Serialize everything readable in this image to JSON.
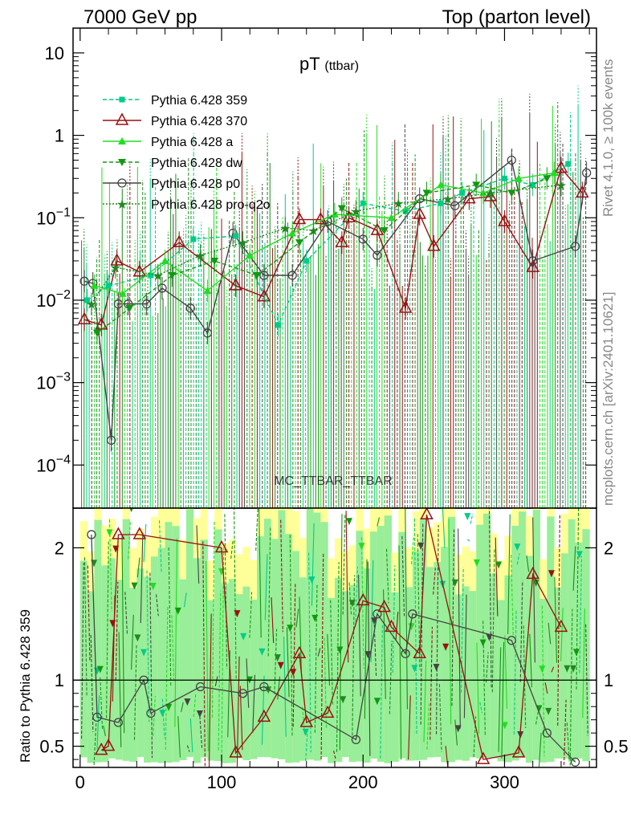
{
  "header": {
    "left": "7000 GeV pp",
    "right": "Top (parton level)"
  },
  "side_labels": {
    "rivet": "Rivet 4.1.0, ≥ 100k events",
    "mcplots": "mcplots.cern.ch [arXiv:2401.10621]"
  },
  "watermark": "MC_TTBAR_TTBAR",
  "colors": {
    "s359": "#00cc88",
    "s370": "#991111",
    "sa": "#22dd22",
    "sdw": "#119911",
    "sp0": "#444444",
    "spro": "#228822",
    "band_inner": "#99ee99",
    "band_outer": "#ffff99"
  },
  "chart_data": [
    {
      "type": "line",
      "panel": "main",
      "title": "pT",
      "title_sub": "(ttbar)",
      "yscale": "log",
      "xlim": [
        -5,
        365
      ],
      "ylim": [
        3e-05,
        20
      ],
      "yticks": [
        {
          "value": 0.0001,
          "label": "10",
          "exp": "−4"
        },
        {
          "value": 0.001,
          "label": "10",
          "exp": "−3"
        },
        {
          "value": 0.01,
          "label": "10",
          "exp": "−2"
        },
        {
          "value": 0.1,
          "label": "10",
          "exp": "−1"
        },
        {
          "value": 1,
          "label": "1",
          "exp": ""
        },
        {
          "value": 10,
          "label": "10",
          "exp": ""
        }
      ],
      "legend": [
        {
          "key": "s359",
          "name": "Pythia 6.428 359"
        },
        {
          "key": "s370",
          "name": "Pythia 6.428 370"
        },
        {
          "key": "sa",
          "name": "Pythia 6.428 a"
        },
        {
          "key": "sdw",
          "name": "Pythia 6.428 dw"
        },
        {
          "key": "sp0",
          "name": "Pythia 6.428 p0"
        },
        {
          "key": "spro",
          "name": "Pythia 6.428 pro-q2o"
        }
      ],
      "series": [
        {
          "key": "s370",
          "name": "Pythia 6.428 370",
          "points": [
            [
              3,
              0.0058
            ],
            [
              15,
              0.005
            ],
            [
              26,
              0.03
            ],
            [
              42,
              0.022
            ],
            [
              70,
              0.05
            ],
            [
              110,
              0.015
            ],
            [
              130,
              0.011
            ],
            [
              155,
              0.095
            ],
            [
              170,
              0.095
            ],
            [
              185,
              0.05
            ],
            [
              190,
              0.1
            ],
            [
              210,
              0.07
            ],
            [
              230,
              0.008
            ],
            [
              240,
              0.11
            ],
            [
              250,
              0.045
            ],
            [
              275,
              0.17
            ],
            [
              290,
              0.18
            ],
            [
              300,
              0.09
            ],
            [
              320,
              0.025
            ],
            [
              340,
              0.4
            ],
            [
              355,
              0.2
            ]
          ]
        },
        {
          "key": "sp0",
          "name": "Pythia 6.428 p0",
          "points": [
            [
              3,
              0.017
            ],
            [
              9,
              0.016
            ],
            [
              22,
              0.0002
            ],
            [
              27,
              0.009
            ],
            [
              34,
              0.009
            ],
            [
              47,
              0.009
            ],
            [
              58,
              0.014
            ],
            [
              78,
              0.008
            ],
            [
              90,
              0.004
            ],
            [
              108,
              0.065
            ],
            [
              130,
              0.02
            ],
            [
              150,
              0.02
            ],
            [
              175,
              0.09
            ],
            [
              200,
              0.055
            ],
            [
              210,
              0.035
            ],
            [
              240,
              0.17
            ],
            [
              265,
              0.14
            ],
            [
              305,
              0.5
            ],
            [
              320,
              0.03
            ],
            [
              350,
              0.045
            ],
            [
              358,
              0.35
            ]
          ]
        },
        {
          "key": "s359",
          "name": "Pythia 6.428 359",
          "points": [
            [
              5,
              0.01
            ],
            [
              20,
              0.015
            ],
            [
              50,
              0.02
            ],
            [
              80,
              0.055
            ],
            [
              110,
              0.06
            ],
            [
              140,
              0.005
            ],
            [
              160,
              0.03
            ],
            [
              200,
              0.15
            ],
            [
              230,
              0.12
            ],
            [
              255,
              0.15
            ],
            [
              270,
              0.2
            ],
            [
              300,
              0.3
            ],
            [
              320,
              0.25
            ],
            [
              345,
              0.45
            ]
          ]
        },
        {
          "key": "sa",
          "name": "Pythia 6.428 a",
          "points": [
            [
              10,
              0.015
            ],
            [
              30,
              0.012
            ],
            [
              60,
              0.03
            ],
            [
              90,
              0.013
            ],
            [
              120,
              0.035
            ],
            [
              150,
              0.065
            ],
            [
              180,
              0.11
            ],
            [
              220,
              0.1
            ],
            [
              255,
              0.25
            ],
            [
              285,
              0.2
            ],
            [
              310,
              0.3
            ],
            [
              335,
              0.35
            ]
          ]
        },
        {
          "key": "sdw",
          "name": "Pythia 6.428 dw",
          "points": [
            [
              12,
              0.004
            ],
            [
              35,
              0.008
            ],
            [
              65,
              0.02
            ],
            [
              95,
              0.03
            ],
            [
              125,
              0.02
            ],
            [
              155,
              0.05
            ],
            [
              185,
              0.13
            ],
            [
              215,
              0.07
            ],
            [
              245,
              0.2
            ],
            [
              280,
              0.25
            ],
            [
              305,
              0.2
            ],
            [
              330,
              0.3
            ]
          ]
        },
        {
          "key": "spro",
          "name": "Pythia 6.428 pro-q2o",
          "points": [
            [
              8,
              0.009
            ],
            [
              25,
              0.025
            ],
            [
              55,
              0.02
            ],
            [
              85,
              0.035
            ],
            [
              115,
              0.05
            ],
            [
              145,
              0.075
            ],
            [
              165,
              0.07
            ],
            [
              195,
              0.12
            ],
            [
              225,
              0.15
            ],
            [
              260,
              0.17
            ],
            [
              290,
              0.2
            ],
            [
              340,
              0.25
            ]
          ]
        }
      ]
    },
    {
      "type": "line",
      "panel": "ratio",
      "ylabel": "Ratio to Pythia 6.428 359",
      "xlim": [
        -5,
        365
      ],
      "ylim": [
        0.34,
        2.3
      ],
      "xticks": [
        0,
        100,
        200,
        300
      ],
      "yticks": [
        0.5,
        1,
        2
      ],
      "reference": 1,
      "series": [
        {
          "key": "sp0",
          "points": [
            [
              8,
              2.1
            ],
            [
              12,
              0.72
            ],
            [
              27,
              0.68
            ],
            [
              45,
              1.0
            ],
            [
              50,
              0.75
            ],
            [
              85,
              0.95
            ],
            [
              115,
              0.9
            ],
            [
              130,
              0.95
            ],
            [
              195,
              0.55
            ],
            [
              210,
              1.5
            ],
            [
              230,
              1.2
            ],
            [
              235,
              1.5
            ],
            [
              305,
              1.3
            ],
            [
              330,
              0.6
            ],
            [
              350,
              0.38
            ]
          ]
        },
        {
          "key": "s370",
          "points": [
            [
              15,
              0.47
            ],
            [
              20,
              0.5
            ],
            [
              27,
              2.1
            ],
            [
              42,
              2.1
            ],
            [
              100,
              2.0
            ],
            [
              110,
              0.45
            ],
            [
              130,
              0.72
            ],
            [
              155,
              1.2
            ],
            [
              160,
              0.68
            ],
            [
              175,
              0.75
            ],
            [
              200,
              1.6
            ],
            [
              215,
              1.55
            ],
            [
              220,
              1.4
            ],
            [
              240,
              1.2
            ],
            [
              245,
              2.25
            ],
            [
              285,
              0.4
            ],
            [
              310,
              0.45
            ],
            [
              320,
              1.8
            ],
            [
              340,
              1.4
            ]
          ]
        }
      ]
    }
  ]
}
